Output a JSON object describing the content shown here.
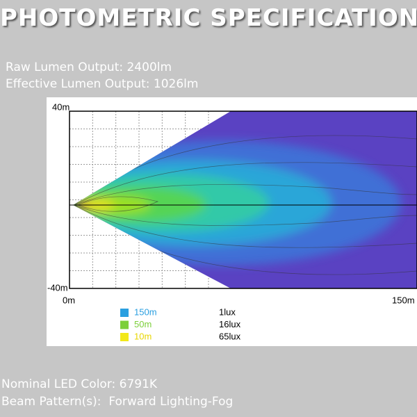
{
  "header": {
    "title": "PHOTOMETRIC SPECIFICATIONS"
  },
  "specs": [
    "Raw Lumen Output: 2400lm",
    "Effective Lumen Output: 1026lm"
  ],
  "figure": {
    "y_top": "40m",
    "y_bottom": "-40m",
    "x_left": "0m",
    "x_right": "150m",
    "legend": [
      {
        "distance": "150m",
        "illuminance": "1lux"
      },
      {
        "distance": "50m",
        "illuminance": "16lux"
      },
      {
        "distance": "10m",
        "illuminance": "65lux"
      }
    ]
  },
  "footer": [
    "Nominal LED Color: 6791K",
    "Beam Pattern(s):  Forward Lighting-Fog"
  ]
}
